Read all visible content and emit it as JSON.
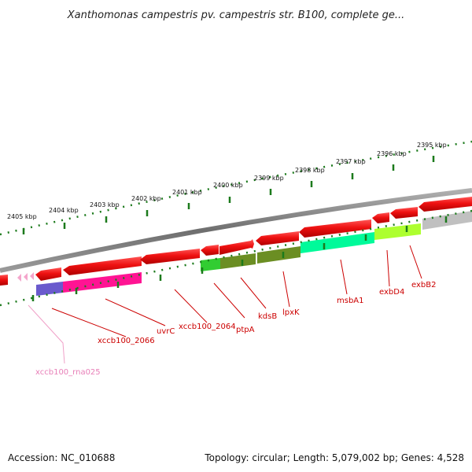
{
  "title": "Xanthomonas campestris pv. campestris str. B100, complete ge...",
  "footer": {
    "accession": "Accession: NC_010688",
    "summary": "Topology: circular; Length: 5,079,002 bp; Genes: 4,528"
  },
  "colors": {
    "backbone": "#7a7a7a",
    "forward_gene": "#ee1111",
    "reverse_gene": "#ff2a2a",
    "rna": "#f4a6cc",
    "tick": "#1c7a1c",
    "label": "#cc0000",
    "label_rna": "#e87fb8"
  },
  "ticks": [
    "2405 kbp",
    "2404 kbp",
    "2403 kbp",
    "2402 kbp",
    "2401 kbp",
    "2400 kbp",
    "2399 kbp",
    "2398 kbp",
    "2397 kbp",
    "2396 kbp",
    "2395 kbp"
  ],
  "gene_labels": [
    {
      "name": "xccb100_rna025",
      "color": "#e87fb8"
    },
    {
      "name": "xccb100_2066",
      "color": "#cc0000"
    },
    {
      "name": "uvrC",
      "color": "#cc0000"
    },
    {
      "name": "xccb100_2064",
      "color": "#cc0000"
    },
    {
      "name": "ptpA",
      "color": "#cc0000"
    },
    {
      "name": "kdsB",
      "color": "#cc0000"
    },
    {
      "name": "lpxK",
      "color": "#cc0000"
    },
    {
      "name": "msbA1",
      "color": "#cc0000"
    },
    {
      "name": "exbD4",
      "color": "#cc0000"
    },
    {
      "name": "exbB2",
      "color": "#cc0000"
    }
  ],
  "feature_bands": [
    "#6a5acd",
    "#ff1493",
    "#32cd32",
    "#6b8e23",
    "#00fa9a",
    "#adff2f",
    "#c0c0c0"
  ]
}
